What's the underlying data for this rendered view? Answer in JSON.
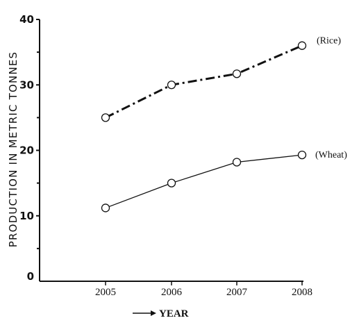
{
  "chart_data": {
    "type": "line",
    "categories": [
      "2005",
      "2006",
      "2007",
      "2008"
    ],
    "series": [
      {
        "name": "(Rice)",
        "values": [
          25,
          30,
          31.7,
          36
        ],
        "line_style": "dash-dot"
      },
      {
        "name": "(Wheat)",
        "values": [
          11.2,
          15,
          18.2,
          19.3
        ],
        "line_style": "solid"
      }
    ],
    "ylabel": "PRODUCTION IN METRIC TONNES",
    "xlabel": "YEAR",
    "ylim": [
      0,
      40
    ],
    "yticks": [
      "0",
      "10",
      "20",
      "30",
      "40"
    ],
    "grid": false,
    "marker": "open-circle",
    "colors": {
      "line": "#111111",
      "background": "#ffffff"
    }
  }
}
